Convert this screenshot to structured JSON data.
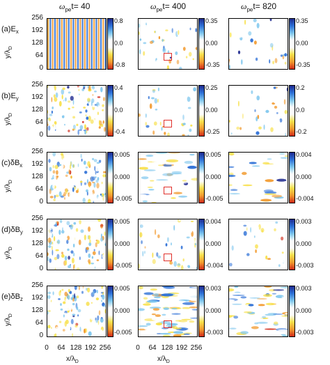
{
  "colors": {
    "colormap": [
      "#1f2a8f",
      "#2c6fd6",
      "#7fc7ee",
      "#ffffff",
      "#ffffff",
      "#f8e04a",
      "#f29a2e",
      "#d02a1a"
    ],
    "zoom_box": "#e0302b"
  },
  "columns": [
    {
      "title_sym": "ω",
      "title_sub": "pe",
      "title_rest": "t= 40"
    },
    {
      "title_sym": "ω",
      "title_sub": "pe",
      "title_rest": "t= 400"
    },
    {
      "title_sym": "ω",
      "title_sub": "pe",
      "title_rest": "t= 820"
    }
  ],
  "rows": [
    {
      "label_main": "(a)E",
      "label_sub": "x"
    },
    {
      "label_main": "(b)E",
      "label_sub": "y"
    },
    {
      "label_main": "(c)δB",
      "label_sub": "x"
    },
    {
      "label_main": "(d)δB",
      "label_sub": "y"
    },
    {
      "label_main": "(e)δB",
      "label_sub": "z"
    }
  ],
  "axes": {
    "ylabel_main": "y/λ",
    "ylabel_sub": "D",
    "xlabel_main": "x/λ",
    "xlabel_sub": "D",
    "ticks": [
      "0",
      "64",
      "128",
      "192",
      "256"
    ]
  },
  "chart_data": {
    "type": "heatmap",
    "x_range": [
      0,
      256
    ],
    "y_range": [
      0,
      256
    ],
    "zoom_box_region": {
      "x": [
        112,
        144
      ],
      "y": [
        48,
        80
      ]
    },
    "colorbars": [
      [
        [
          "0.8",
          "0.0",
          "-0.8"
        ],
        [
          "0.35",
          "0.00",
          "-0.35"
        ],
        [
          "0.35",
          "0.00",
          "-0.35"
        ]
      ],
      [
        [
          "0.4",
          "0.0",
          "-0.4"
        ],
        [
          "0.25",
          "0.00",
          "-0.25"
        ],
        [
          "0.2",
          "0.0",
          "-0.2"
        ]
      ],
      [
        [
          "0.005",
          "0.000",
          "-0.005"
        ],
        [
          "0.005",
          "0.000",
          "-0.005"
        ],
        [
          "0.004",
          "0.000",
          "-0.004"
        ]
      ],
      [
        [
          "0.005",
          "0.000",
          "-0.005"
        ],
        [
          "0.004",
          "0.000",
          "-0.004"
        ],
        [
          "0.003",
          "0.000",
          "-0.003"
        ]
      ],
      [
        [
          "0.005",
          "0.000",
          "-0.005"
        ],
        [
          "0.003",
          "0.000",
          "-0.003"
        ],
        [
          "0.003",
          "0.000",
          "-0.003"
        ]
      ]
    ]
  }
}
